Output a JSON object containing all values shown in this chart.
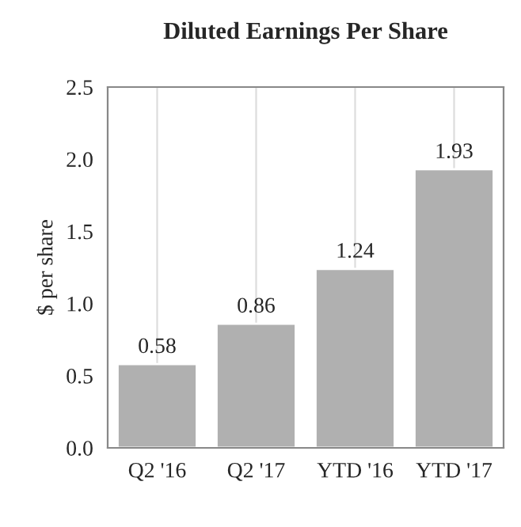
{
  "chart_data": {
    "type": "bar",
    "title": "Diluted Earnings Per Share",
    "ylabel": "$ per share",
    "categories": [
      "Q2 '16",
      "Q2 '17",
      "YTD '16",
      "YTD '17"
    ],
    "values": [
      0.58,
      0.86,
      1.24,
      1.93
    ],
    "color": "#b0b0b0",
    "ylim": [
      0,
      2.5
    ],
    "yticks": [
      {
        "value": 0,
        "label": "0.0"
      },
      {
        "value": 0.5,
        "label": "0.5"
      },
      {
        "value": 1,
        "label": "1.0"
      },
      {
        "value": 1.5,
        "label": "1.5"
      },
      {
        "value": 2,
        "label": "2.0"
      },
      {
        "value": 2.5,
        "label": "2.5"
      }
    ],
    "grid": "x",
    "data_labels": true
  }
}
